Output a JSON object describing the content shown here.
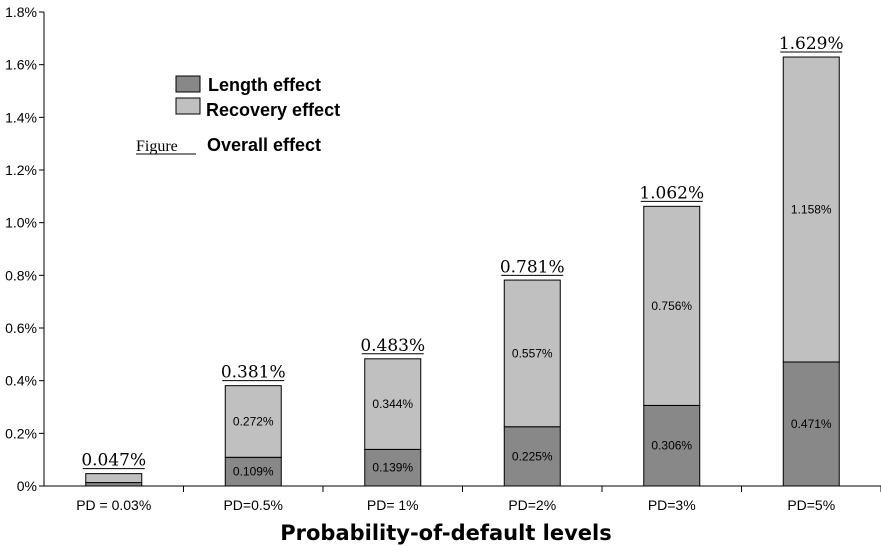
{
  "chart_data": {
    "type": "bar",
    "stacked": true,
    "categories": [
      "PD = 0.03%",
      "PD=0.5%",
      "PD= 1%",
      "PD=2%",
      "PD=3%",
      "PD=5%"
    ],
    "series": [
      {
        "name": "Length effect",
        "color": "#888888",
        "values": [
          0.013,
          0.109,
          0.139,
          0.225,
          0.306,
          0.471
        ],
        "labels": [
          "",
          "0.109%",
          "0.139%",
          "0.225%",
          "0.306%",
          "0.471%"
        ]
      },
      {
        "name": "Recovery effect",
        "color": "#c0c0c0",
        "values": [
          0.034,
          0.272,
          0.344,
          0.557,
          0.756,
          1.158
        ],
        "labels": [
          "",
          "0.272%",
          "0.344%",
          "0.557%",
          "0.756%",
          "1.158%"
        ]
      }
    ],
    "totals": [
      0.047,
      0.381,
      0.483,
      0.781,
      1.062,
      1.629
    ],
    "total_labels": [
      "0.047%",
      "0.381%",
      "0.483%",
      "0.781%",
      "1.062%",
      "1.629%"
    ],
    "xlabel": "Probability-of-default levels",
    "ylim": [
      0,
      1.8
    ],
    "yticks": [
      0,
      0.2,
      0.4,
      0.6,
      0.8,
      1.0,
      1.2,
      1.4,
      1.6,
      1.8
    ],
    "ytick_labels": [
      "0%",
      "0.2%",
      "0.4%",
      "0.6%",
      "0.8%",
      "1.0%",
      "1.2%",
      "1.4%",
      "1.6%",
      "1.8%"
    ],
    "legend": {
      "placement": "top-left",
      "entries": [
        "Length effect",
        "Recovery effect"
      ],
      "figure_label": "Figure",
      "overall_label": "Overall effect"
    },
    "grid": false
  }
}
